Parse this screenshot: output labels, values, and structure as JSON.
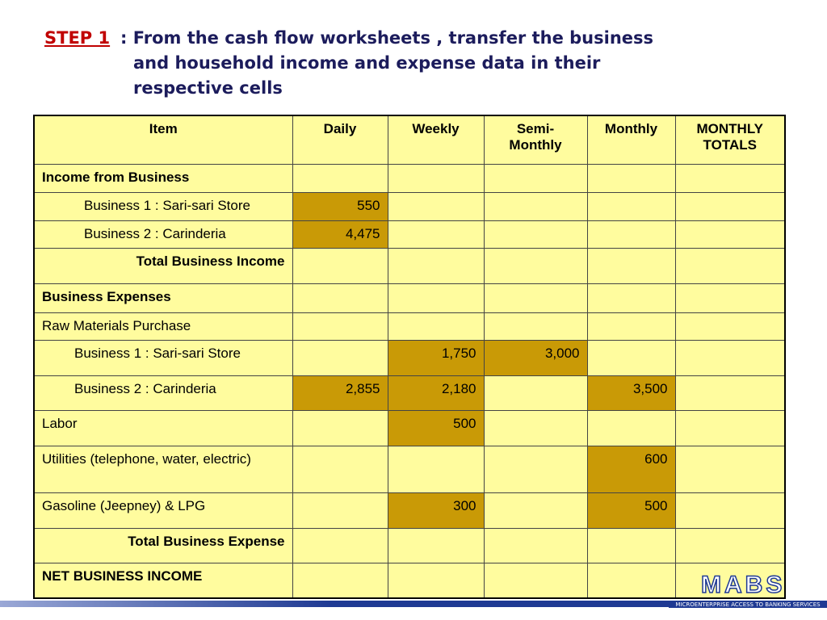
{
  "header": {
    "step": "STEP 1",
    "title": ": From the cash flow worksheets  , transfer the business and household income and  expense data in their respective cells"
  },
  "table": {
    "columns": [
      "Item",
      "Daily",
      "Weekly",
      "Semi-Monthly",
      "Monthly",
      "MONTHLY TOTALS"
    ],
    "rows": [
      [
        "Income from Business"
      ],
      [
        "Business 1 : Sari-sari Store",
        "550"
      ],
      [
        "Business 2 : Carinderia",
        "4,475"
      ],
      [
        "Total Business Income"
      ],
      [
        "Business Expenses"
      ],
      [
        "Raw Materials Purchase"
      ],
      [
        "Business 1 : Sari-sari Store",
        null,
        "1,750",
        "3,000"
      ],
      [
        "Business 2 :  Carinderia",
        "2,855",
        "2,180",
        null,
        "3,500"
      ],
      [
        "Labor",
        null,
        "500"
      ],
      [
        "Utilities (telephone, water, electric)",
        null,
        null,
        null,
        "600"
      ],
      [
        "Gasoline (Jeepney) & LPG",
        null,
        "300",
        null,
        "500"
      ],
      [
        "Total Business Expense"
      ],
      [
        "NET BUSINESS INCOME"
      ]
    ]
  },
  "footer": {
    "logo": "MABS",
    "tagline": "MICROENTERPRISE ACCESS TO BANKING SERVICES"
  }
}
